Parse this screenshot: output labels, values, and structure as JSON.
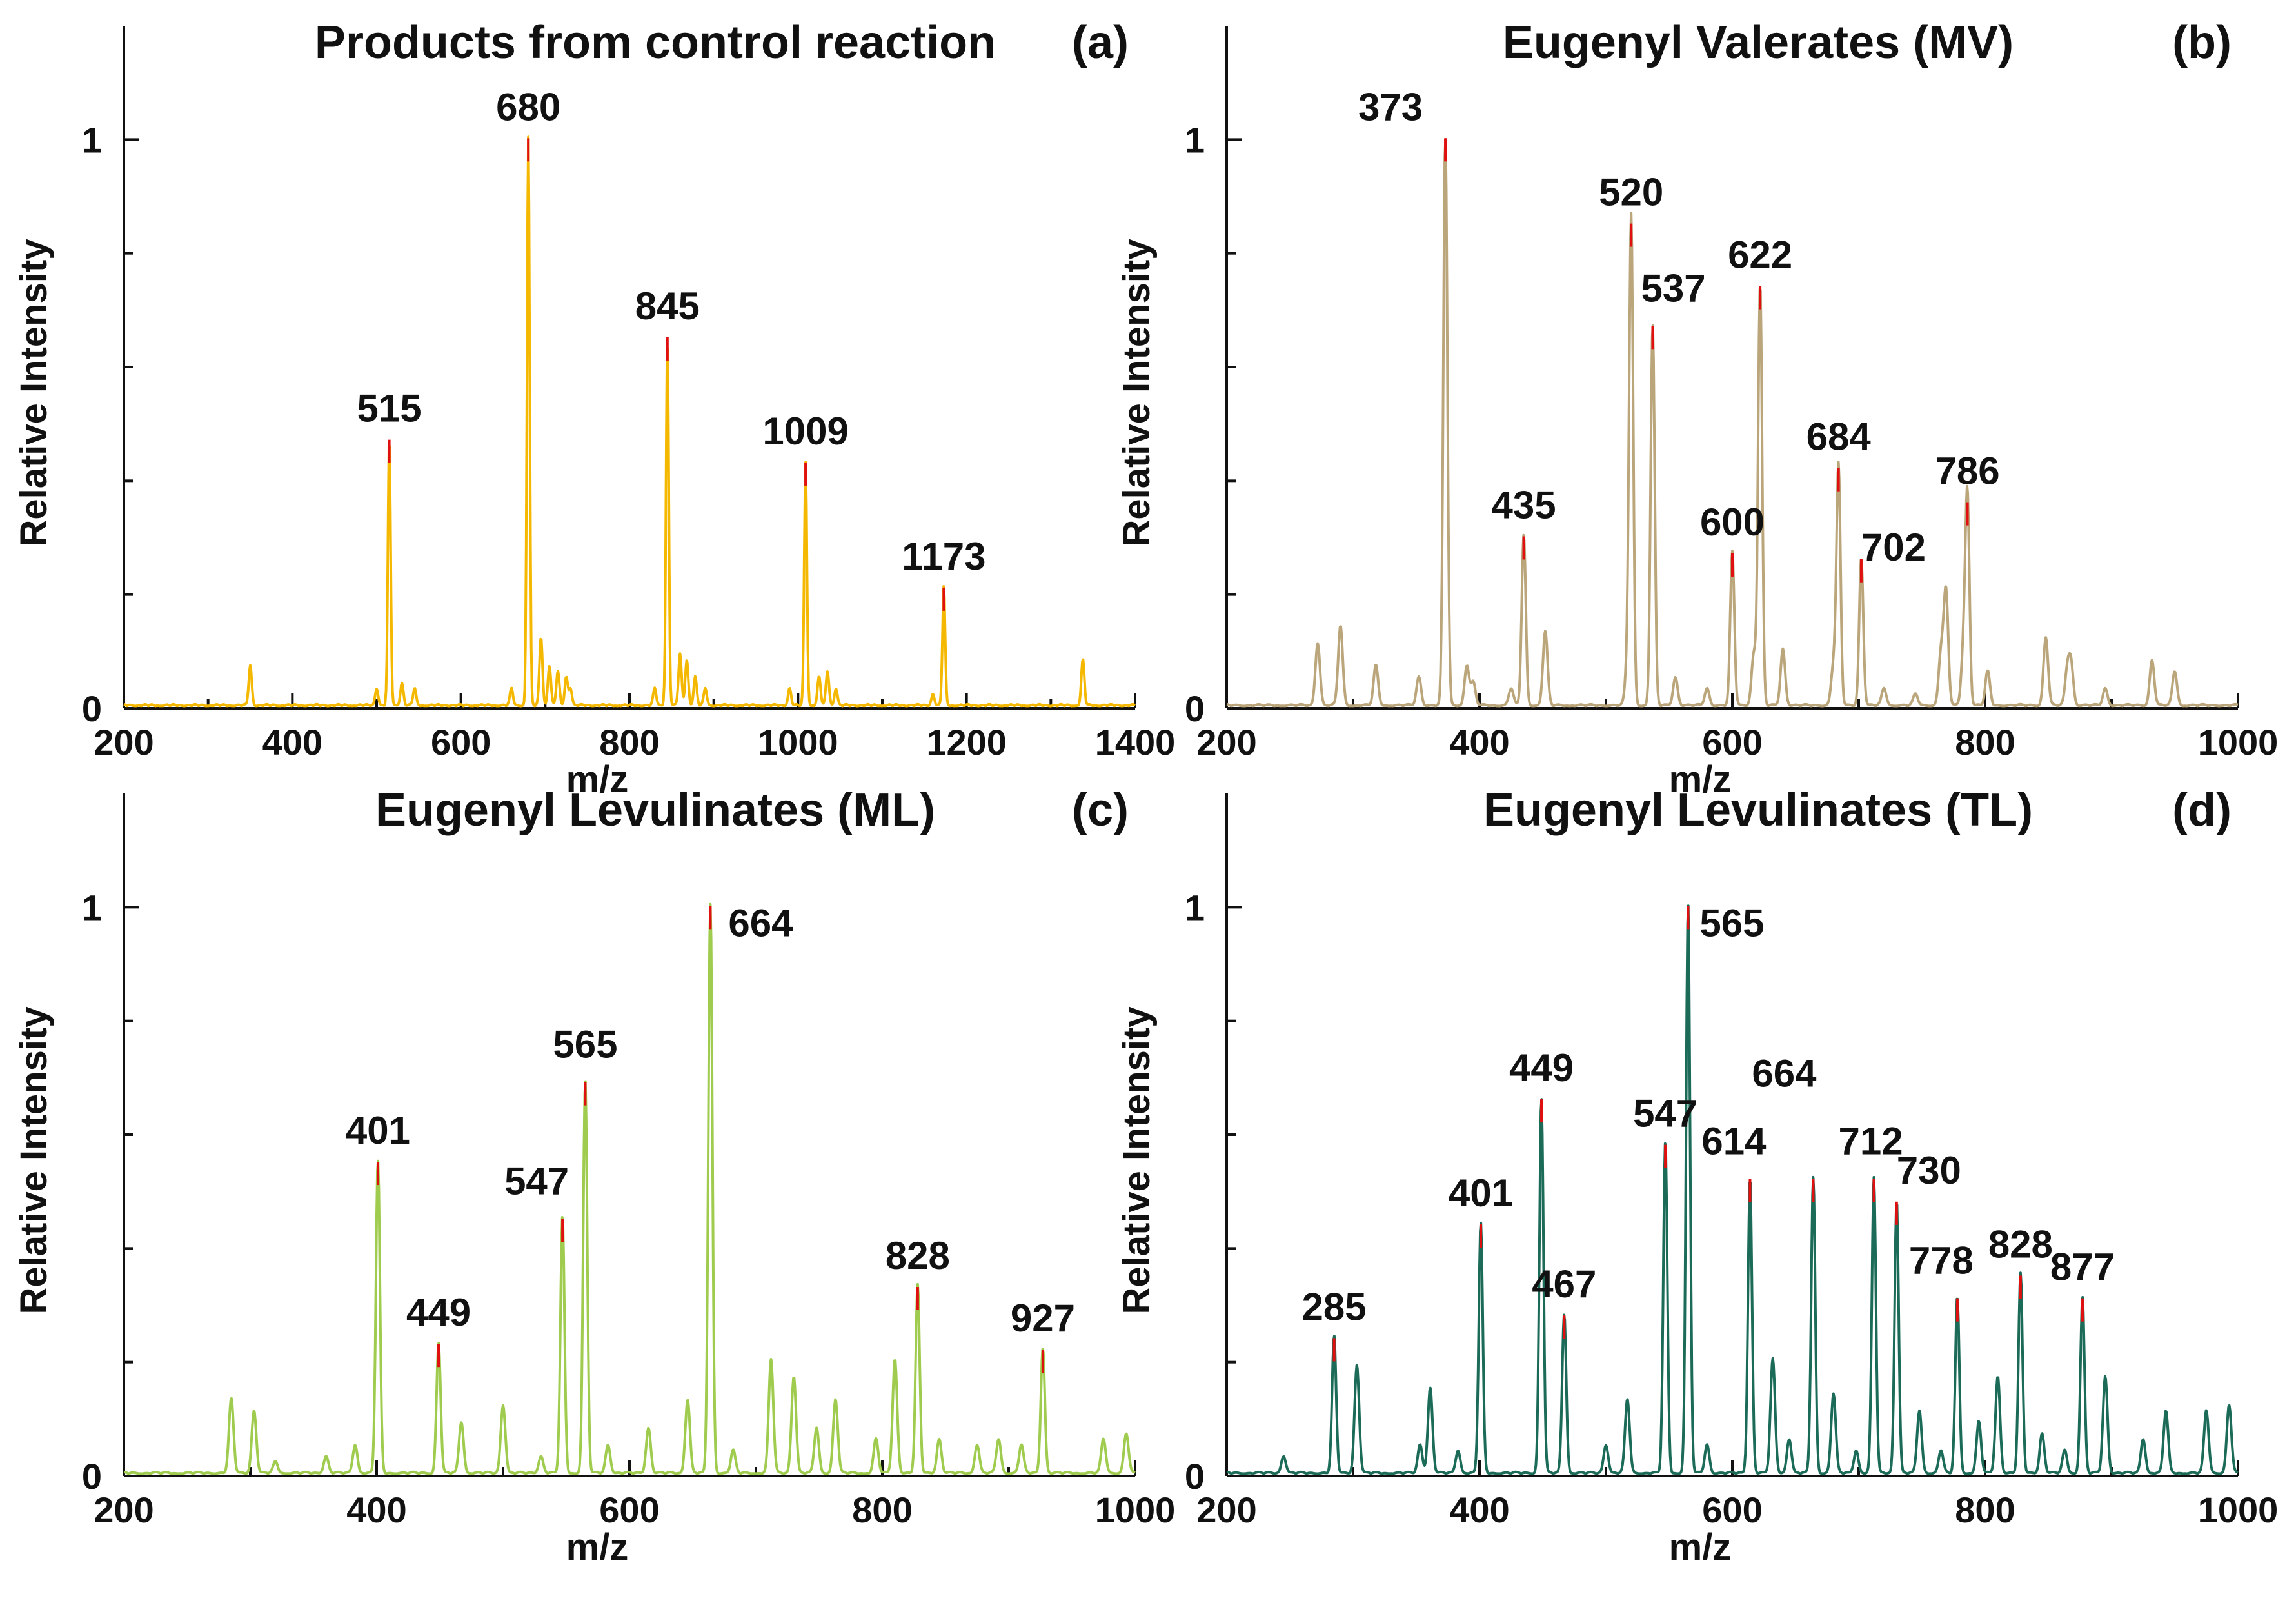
{
  "figure": {
    "panels": [
      {
        "id": "a",
        "chart_data": {
          "type": "line",
          "title": "Products from control reaction",
          "panel_label": "(a)",
          "xlabel": "m/z",
          "ylabel": "Relative Intensity",
          "xlim": [
            200,
            1400
          ],
          "ylim": [
            0,
            1.2
          ],
          "xticks": [
            200,
            400,
            600,
            800,
            1000,
            1200,
            1400
          ],
          "xtick_labels": [
            "200",
            "400",
            "600",
            "800",
            "1000",
            "1200",
            "1400"
          ],
          "yticks": [
            0,
            1
          ],
          "ytick_labels": [
            "0",
            "1"
          ],
          "color": "#F5B800",
          "peaks": [
            {
              "x": 515,
              "y": 0.47,
              "label": "515"
            },
            {
              "x": 680,
              "y": 1.0,
              "label": "680"
            },
            {
              "x": 845,
              "y": 0.65,
              "label": "845"
            },
            {
              "x": 1009,
              "y": 0.43,
              "label": "1009"
            },
            {
              "x": 1173,
              "y": 0.21,
              "label": "1173"
            }
          ],
          "minor_peaks": [
            {
              "x": 350,
              "y": 0.07
            },
            {
              "x": 500,
              "y": 0.03
            },
            {
              "x": 530,
              "y": 0.04
            },
            {
              "x": 545,
              "y": 0.03
            },
            {
              "x": 660,
              "y": 0.03
            },
            {
              "x": 695,
              "y": 0.12
            },
            {
              "x": 705,
              "y": 0.07
            },
            {
              "x": 715,
              "y": 0.06
            },
            {
              "x": 725,
              "y": 0.05
            },
            {
              "x": 730,
              "y": 0.03
            },
            {
              "x": 830,
              "y": 0.03
            },
            {
              "x": 860,
              "y": 0.09
            },
            {
              "x": 868,
              "y": 0.08
            },
            {
              "x": 878,
              "y": 0.05
            },
            {
              "x": 890,
              "y": 0.03
            },
            {
              "x": 990,
              "y": 0.03
            },
            {
              "x": 1025,
              "y": 0.05
            },
            {
              "x": 1035,
              "y": 0.06
            },
            {
              "x": 1045,
              "y": 0.03
            },
            {
              "x": 1160,
              "y": 0.02
            },
            {
              "x": 1338,
              "y": 0.08
            }
          ]
        }
      },
      {
        "id": "b",
        "chart_data": {
          "type": "line",
          "title": "Eugenyl Valerates (MV)",
          "panel_label": "(b)",
          "xlabel": "m/z",
          "ylabel": "Relative Intensity",
          "xlim": [
            200,
            1000
          ],
          "ylim": [
            0,
            1.2
          ],
          "xticks": [
            200,
            400,
            600,
            800,
            1000
          ],
          "xtick_labels": [
            "200",
            "400",
            "600",
            "800",
            "1000"
          ],
          "yticks": [
            0,
            1
          ],
          "ytick_labels": [
            "0",
            "1"
          ],
          "color": "#BBA67C",
          "peaks": [
            {
              "x": 373,
              "y": 1.0,
              "label": "373"
            },
            {
              "x": 435,
              "y": 0.3,
              "label": "435"
            },
            {
              "x": 520,
              "y": 0.85,
              "label": "520"
            },
            {
              "x": 537,
              "y": 0.67,
              "label": "537"
            },
            {
              "x": 600,
              "y": 0.27,
              "label": "600"
            },
            {
              "x": 622,
              "y": 0.74,
              "label": "622"
            },
            {
              "x": 684,
              "y": 0.42,
              "label": "684"
            },
            {
              "x": 702,
              "y": 0.26,
              "label": "702"
            },
            {
              "x": 786,
              "y": 0.36,
              "label": "786"
            }
          ],
          "minor_peaks": [
            {
              "x": 272,
              "y": 0.11
            },
            {
              "x": 290,
              "y": 0.14
            },
            {
              "x": 318,
              "y": 0.07
            },
            {
              "x": 352,
              "y": 0.05
            },
            {
              "x": 390,
              "y": 0.07
            },
            {
              "x": 395,
              "y": 0.04
            },
            {
              "x": 425,
              "y": 0.03
            },
            {
              "x": 452,
              "y": 0.13
            },
            {
              "x": 517,
              "y": 0.06
            },
            {
              "x": 555,
              "y": 0.05
            },
            {
              "x": 580,
              "y": 0.03
            },
            {
              "x": 617,
              "y": 0.09
            },
            {
              "x": 640,
              "y": 0.1
            },
            {
              "x": 680,
              "y": 0.07
            },
            {
              "x": 720,
              "y": 0.03
            },
            {
              "x": 745,
              "y": 0.02
            },
            {
              "x": 765,
              "y": 0.09
            },
            {
              "x": 769,
              "y": 0.2
            },
            {
              "x": 783,
              "y": 0.1
            },
            {
              "x": 802,
              "y": 0.06
            },
            {
              "x": 848,
              "y": 0.12
            },
            {
              "x": 865,
              "y": 0.06
            },
            {
              "x": 868,
              "y": 0.07
            },
            {
              "x": 895,
              "y": 0.03
            },
            {
              "x": 932,
              "y": 0.08
            },
            {
              "x": 950,
              "y": 0.06
            }
          ]
        }
      },
      {
        "id": "c",
        "chart_data": {
          "type": "line",
          "title": "Eugenyl Levulinates (ML)",
          "panel_label": "(c)",
          "xlabel": "m/z",
          "ylabel": "Relative Intensity",
          "xlim": [
            200,
            1000
          ],
          "ylim": [
            0,
            1.2
          ],
          "xticks": [
            200,
            400,
            600,
            800,
            1000
          ],
          "xtick_labels": [
            "200",
            "400",
            "600",
            "800",
            "1000"
          ],
          "yticks": [
            0,
            1
          ],
          "ytick_labels": [
            "0",
            "1"
          ],
          "color": "#9FCB4E",
          "peaks": [
            {
              "x": 401,
              "y": 0.55,
              "label": "401"
            },
            {
              "x": 449,
              "y": 0.23,
              "label": "449"
            },
            {
              "x": 547,
              "y": 0.45,
              "label": "547"
            },
            {
              "x": 565,
              "y": 0.69,
              "label": "565"
            },
            {
              "x": 664,
              "y": 1.0,
              "label": "664"
            },
            {
              "x": 828,
              "y": 0.33,
              "label": "828"
            },
            {
              "x": 927,
              "y": 0.22,
              "label": "927"
            }
          ],
          "minor_peaks": [
            {
              "x": 285,
              "y": 0.13
            },
            {
              "x": 303,
              "y": 0.11
            },
            {
              "x": 320,
              "y": 0.02
            },
            {
              "x": 360,
              "y": 0.03
            },
            {
              "x": 383,
              "y": 0.05
            },
            {
              "x": 467,
              "y": 0.09
            },
            {
              "x": 500,
              "y": 0.12
            },
            {
              "x": 530,
              "y": 0.03
            },
            {
              "x": 583,
              "y": 0.05
            },
            {
              "x": 615,
              "y": 0.08
            },
            {
              "x": 646,
              "y": 0.13
            },
            {
              "x": 682,
              "y": 0.04
            },
            {
              "x": 712,
              "y": 0.2
            },
            {
              "x": 730,
              "y": 0.17
            },
            {
              "x": 748,
              "y": 0.08
            },
            {
              "x": 763,
              "y": 0.13
            },
            {
              "x": 795,
              "y": 0.06
            },
            {
              "x": 810,
              "y": 0.2
            },
            {
              "x": 845,
              "y": 0.06
            },
            {
              "x": 875,
              "y": 0.05
            },
            {
              "x": 892,
              "y": 0.06
            },
            {
              "x": 910,
              "y": 0.05
            },
            {
              "x": 975,
              "y": 0.06
            },
            {
              "x": 993,
              "y": 0.07
            }
          ]
        }
      },
      {
        "id": "d",
        "chart_data": {
          "type": "line",
          "title": "Eugenyl Levulinates (TL)",
          "panel_label": "(d)",
          "xlabel": "m/z",
          "ylabel": "Relative Intensity",
          "xlim": [
            200,
            1000
          ],
          "ylim": [
            0,
            1.2
          ],
          "xticks": [
            200,
            400,
            600,
            800,
            1000
          ],
          "xtick_labels": [
            "200",
            "400",
            "600",
            "800",
            "1000"
          ],
          "yticks": [
            0,
            1
          ],
          "ytick_labels": [
            "0",
            "1"
          ],
          "color": "#1B6B58",
          "peaks": [
            {
              "x": 285,
              "y": 0.24,
              "label": "285"
            },
            {
              "x": 401,
              "y": 0.44,
              "label": "401"
            },
            {
              "x": 449,
              "y": 0.66,
              "label": "449"
            },
            {
              "x": 467,
              "y": 0.28,
              "label": "467"
            },
            {
              "x": 547,
              "y": 0.58,
              "label": "547"
            },
            {
              "x": 565,
              "y": 1.0,
              "label": "565"
            },
            {
              "x": 614,
              "y": 0.52,
              "label": "614"
            },
            {
              "x": 664,
              "y": 0.52,
              "label": "664"
            },
            {
              "x": 712,
              "y": 0.52,
              "label": "712"
            },
            {
              "x": 730,
              "y": 0.48,
              "label": "730"
            },
            {
              "x": 778,
              "y": 0.31,
              "label": "778"
            },
            {
              "x": 828,
              "y": 0.35,
              "label": "828"
            },
            {
              "x": 877,
              "y": 0.31,
              "label": "877"
            }
          ],
          "minor_peaks": [
            {
              "x": 245,
              "y": 0.03
            },
            {
              "x": 303,
              "y": 0.19
            },
            {
              "x": 353,
              "y": 0.05
            },
            {
              "x": 361,
              "y": 0.15
            },
            {
              "x": 383,
              "y": 0.04
            },
            {
              "x": 500,
              "y": 0.05
            },
            {
              "x": 517,
              "y": 0.13
            },
            {
              "x": 580,
              "y": 0.05
            },
            {
              "x": 632,
              "y": 0.2
            },
            {
              "x": 645,
              "y": 0.06
            },
            {
              "x": 680,
              "y": 0.14
            },
            {
              "x": 698,
              "y": 0.04
            },
            {
              "x": 748,
              "y": 0.11
            },
            {
              "x": 765,
              "y": 0.04
            },
            {
              "x": 795,
              "y": 0.09
            },
            {
              "x": 810,
              "y": 0.17
            },
            {
              "x": 845,
              "y": 0.07
            },
            {
              "x": 863,
              "y": 0.04
            },
            {
              "x": 895,
              "y": 0.17
            },
            {
              "x": 925,
              "y": 0.06
            },
            {
              "x": 943,
              "y": 0.11
            },
            {
              "x": 975,
              "y": 0.11
            },
            {
              "x": 993,
              "y": 0.12
            }
          ]
        }
      }
    ]
  }
}
